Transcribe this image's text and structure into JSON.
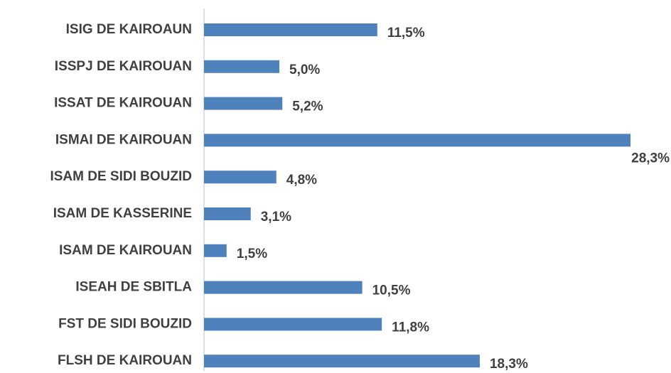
{
  "chart_data": {
    "type": "barh",
    "categories": [
      "ISIG DE KAIROAUN",
      "ISSPJ DE KAIROUAN",
      "ISSAT DE KAIROUAN",
      "ISMAI DE KAIROUAN",
      "ISAM DE SIDI BOUZID",
      "ISAM DE KASSERINE",
      "ISAM DE KAIROUAN",
      "ISEAH DE SBITLA",
      "FST DE SIDI BOUZID",
      "FLSH DE KAIROUAN"
    ],
    "values": [
      11.5,
      5.0,
      5.2,
      28.3,
      4.8,
      3.1,
      1.5,
      10.5,
      11.8,
      18.3
    ],
    "value_labels": [
      "11,5%",
      "5,0%",
      "5,2%",
      "28,3%",
      "4,8%",
      "3,1%",
      "1,5%",
      "10,5%",
      "11,8%",
      "18,3%"
    ],
    "color": "#4f81bd"
  }
}
